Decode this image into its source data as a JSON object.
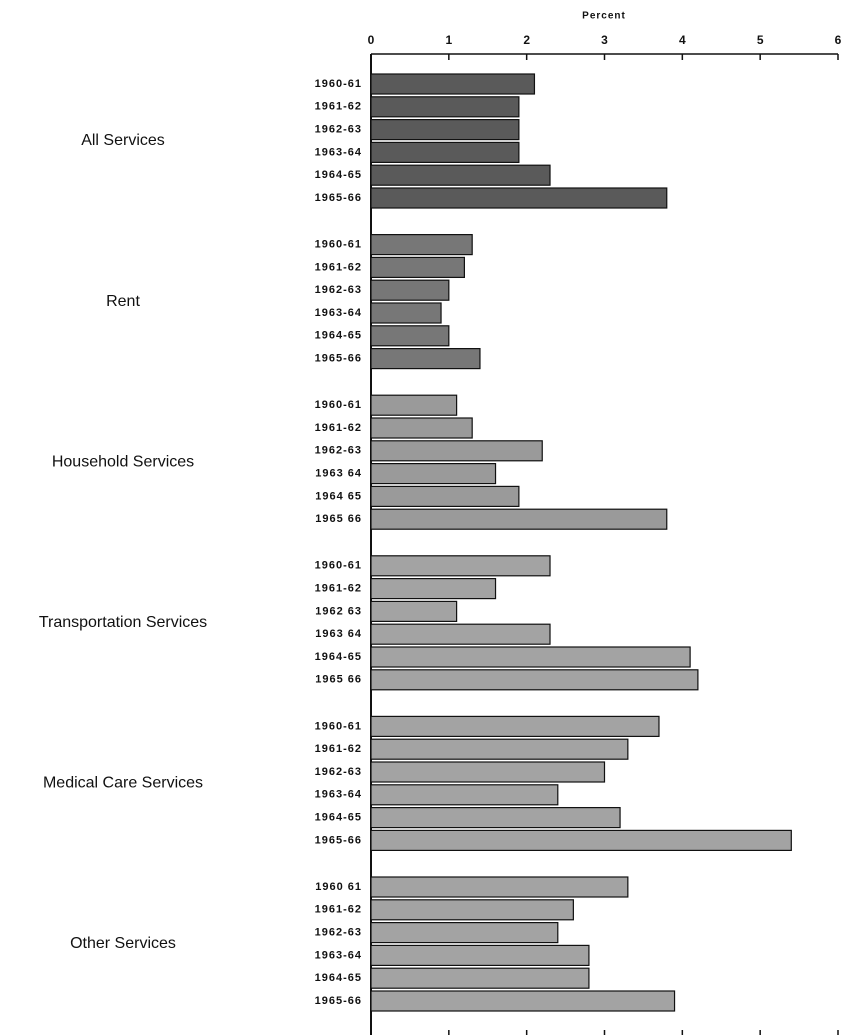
{
  "chart_data": {
    "type": "bar",
    "orientation": "horizontal",
    "x_label": "Percent",
    "xlim": [
      0,
      6
    ],
    "xticks": [
      0,
      1,
      2,
      3,
      4,
      5,
      6
    ],
    "groups": [
      {
        "name": "All Services",
        "color": "#5a5a5a",
        "categories": [
          "1960-61",
          "1961-62",
          "1962-63",
          "1963-64",
          "1964-65",
          "1965-66"
        ],
        "values": [
          2.1,
          1.9,
          1.9,
          1.9,
          2.3,
          3.8
        ]
      },
      {
        "name": "Rent",
        "color": "#777777",
        "categories": [
          "1960-61",
          "1961-62",
          "1962-63",
          "1963-64",
          "1964-65",
          "1965-66"
        ],
        "values": [
          1.3,
          1.2,
          1.0,
          0.9,
          1.0,
          1.4
        ]
      },
      {
        "name": "Household Services",
        "color": "#9a9a9a",
        "categories": [
          "1960-61",
          "1961-62",
          "1962-63",
          "1963 64",
          "1964 65",
          "1965 66"
        ],
        "values": [
          1.1,
          1.3,
          2.2,
          1.6,
          1.9,
          3.8
        ]
      },
      {
        "name": "Transportation Services",
        "color": "#a3a3a3",
        "categories": [
          "1960-61",
          "1961-62",
          "1962 63",
          "1963 64",
          "1964-65",
          "1965 66"
        ],
        "values": [
          2.3,
          1.6,
          1.1,
          2.3,
          4.1,
          4.2
        ]
      },
      {
        "name": "Medical Care Services",
        "color": "#a3a3a3",
        "categories": [
          "1960-61",
          "1961-62",
          "1962-63",
          "1963-64",
          "1964-65",
          "1965-66"
        ],
        "values": [
          3.7,
          3.3,
          3.0,
          2.4,
          3.2,
          5.4
        ]
      },
      {
        "name": "Other Services",
        "color": "#a3a3a3",
        "categories": [
          "1960 61",
          "1961-62",
          "1962-63",
          "1963-64",
          "1964-65",
          "1965-66"
        ],
        "values": [
          3.3,
          2.6,
          2.4,
          2.8,
          2.8,
          3.9
        ]
      }
    ]
  }
}
